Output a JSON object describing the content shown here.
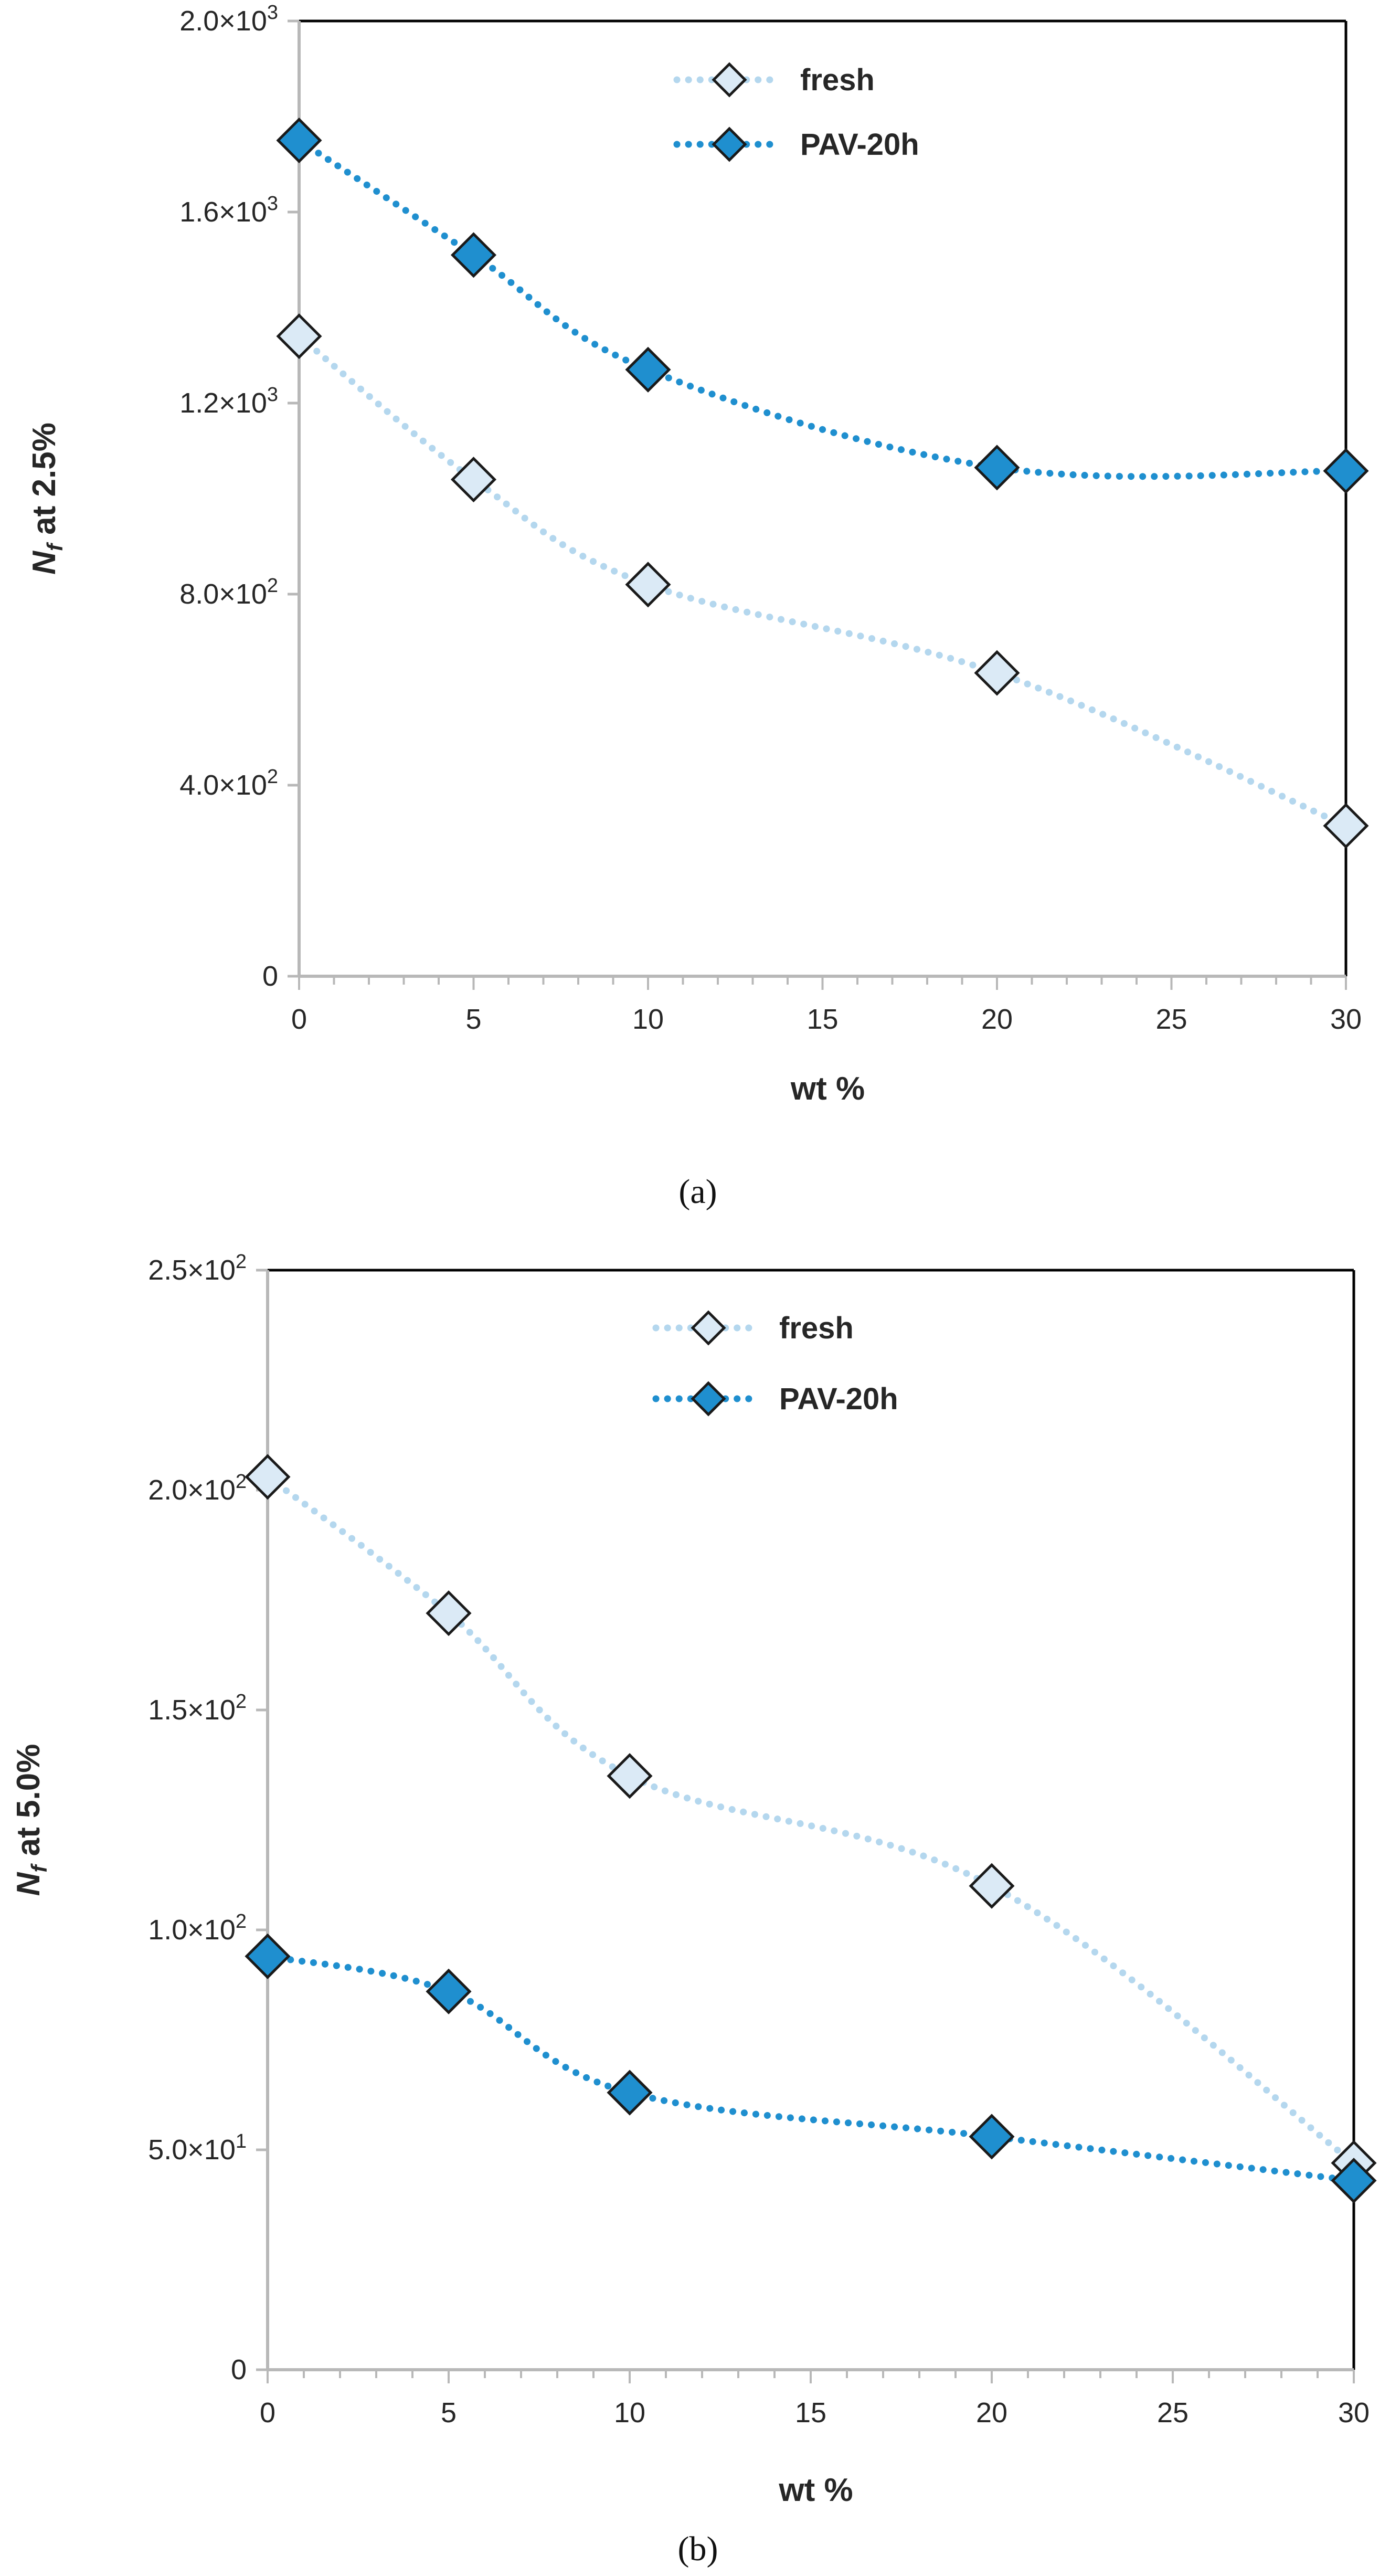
{
  "colors": {
    "fresh": "#b4d7ee",
    "pav": "#1f8fcf",
    "marker_stroke": "#1a1a1a",
    "axis": "#b8b8b8",
    "frame": "#000000"
  },
  "chart_data": [
    {
      "type": "line",
      "caption": "(a)",
      "xlabel": "wt %",
      "ylabel": "N",
      "ylabel_sub": "f",
      "ylabel_rest": " at 2.5%",
      "xlim": [
        0,
        30
      ],
      "ylim": [
        0,
        2000
      ],
      "xticks": [
        0,
        5,
        10,
        15,
        20,
        25,
        30
      ],
      "yticks": [
        0,
        400,
        800,
        1200,
        1600,
        2000
      ],
      "ytick_labels": [
        {
          "main": "0",
          "sup": ""
        },
        {
          "main": "4.0×10",
          "sup": "2"
        },
        {
          "main": "8.0×10",
          "sup": "2"
        },
        {
          "main": "1.2×10",
          "sup": "3"
        },
        {
          "main": "1.6×10",
          "sup": "3"
        },
        {
          "main": "2.0×10",
          "sup": "3"
        }
      ],
      "legend": [
        "fresh",
        "PAV-20h"
      ],
      "series": [
        {
          "name": "fresh",
          "x": [
            0,
            5,
            10,
            20,
            30
          ],
          "values": [
            1340,
            1040,
            820,
            635,
            315
          ]
        },
        {
          "name": "PAV-20h",
          "x": [
            0,
            5,
            10,
            20,
            30
          ],
          "values": [
            1750,
            1510,
            1270,
            1065,
            1058
          ]
        }
      ]
    },
    {
      "type": "line",
      "caption": "(b)",
      "xlabel": "wt %",
      "ylabel": "N",
      "ylabel_sub": "f",
      "ylabel_rest": " at 5.0%",
      "xlim": [
        0,
        30
      ],
      "ylim": [
        0,
        250
      ],
      "xticks": [
        0,
        5,
        10,
        15,
        20,
        25,
        30
      ],
      "yticks": [
        0,
        50,
        100,
        150,
        200,
        250
      ],
      "ytick_labels": [
        {
          "main": "0",
          "sup": ""
        },
        {
          "main": "5.0×10",
          "sup": "1"
        },
        {
          "main": "1.0×10",
          "sup": "2"
        },
        {
          "main": "1.5×10",
          "sup": "2"
        },
        {
          "main": "2.0×10",
          "sup": "2"
        },
        {
          "main": "2.5×10",
          "sup": "2"
        }
      ],
      "legend": [
        "fresh",
        "PAV-20h"
      ],
      "series": [
        {
          "name": "fresh",
          "x": [
            0,
            5,
            10,
            20,
            30
          ],
          "values": [
            203,
            172,
            135,
            110,
            47
          ]
        },
        {
          "name": "PAV-20h",
          "x": [
            0,
            5,
            10,
            20,
            30
          ],
          "values": [
            94,
            86,
            63,
            53,
            43
          ]
        }
      ]
    }
  ]
}
